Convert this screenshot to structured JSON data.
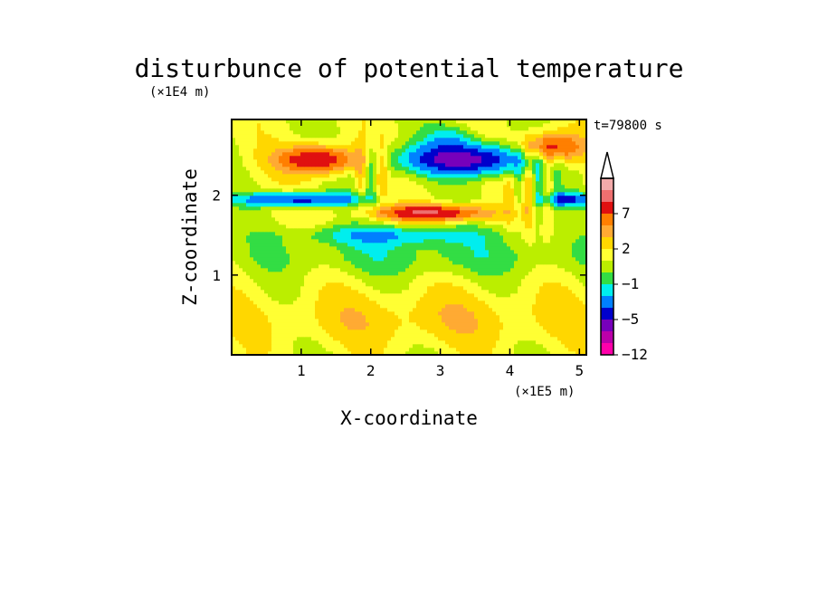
{
  "chart_data": {
    "type": "heatmap",
    "title": "disturbunce of potential temperature",
    "xlabel": "X-coordinate",
    "ylabel": "Z-coordinate",
    "x_unit": "(×1E5 m)",
    "y_unit": "(×1E4 m)",
    "time_label": "t=79800 s",
    "xlim": [
      0,
      5.1
    ],
    "ylim": [
      0,
      2.95
    ],
    "x_ticks": [
      "1",
      "2",
      "3",
      "4",
      "5"
    ],
    "y_ticks": [
      "1",
      "2"
    ],
    "x_tick_values": [
      1,
      2,
      3,
      4,
      5
    ],
    "y_tick_values": [
      1,
      2
    ],
    "colorbar": {
      "labels": [
        "7",
        "2",
        "−1",
        "−5",
        "−12"
      ],
      "colors": [
        "#f3aaaa",
        "#ee6f6f",
        "#e01010",
        "#ff7f00",
        "#ffaa33",
        "#ffd700",
        "#ffff33",
        "#bbee00",
        "#33dd44",
        "#00eeee",
        "#0080ff",
        "#0000cc",
        "#7700bb",
        "#bb00aa",
        "#ff00aa"
      ]
    },
    "features": [
      {
        "x": 3.4,
        "z": 2.45,
        "sx": 0.9,
        "sz": 0.18,
        "value": -7
      },
      {
        "x": 1.0,
        "z": 1.95,
        "sx": 0.7,
        "sz": 0.08,
        "value": -6
      },
      {
        "x": 4.8,
        "z": 1.95,
        "sx": 0.35,
        "sz": 0.08,
        "value": -5
      },
      {
        "x": 1.25,
        "z": 2.45,
        "sx": 0.6,
        "sz": 0.2,
        "value": 6
      },
      {
        "x": 4.6,
        "z": 2.6,
        "sx": 0.5,
        "sz": 0.18,
        "value": 5
      },
      {
        "x": 2.9,
        "z": 1.78,
        "sx": 0.9,
        "sz": 0.12,
        "value": 6
      },
      {
        "x": 2.8,
        "z": 0.5,
        "sx": 2.5,
        "sz": 0.35,
        "value": 1.5
      },
      {
        "x": 2.9,
        "z": 1.25,
        "sx": 1.5,
        "sz": 0.1,
        "value": -1
      }
    ]
  }
}
